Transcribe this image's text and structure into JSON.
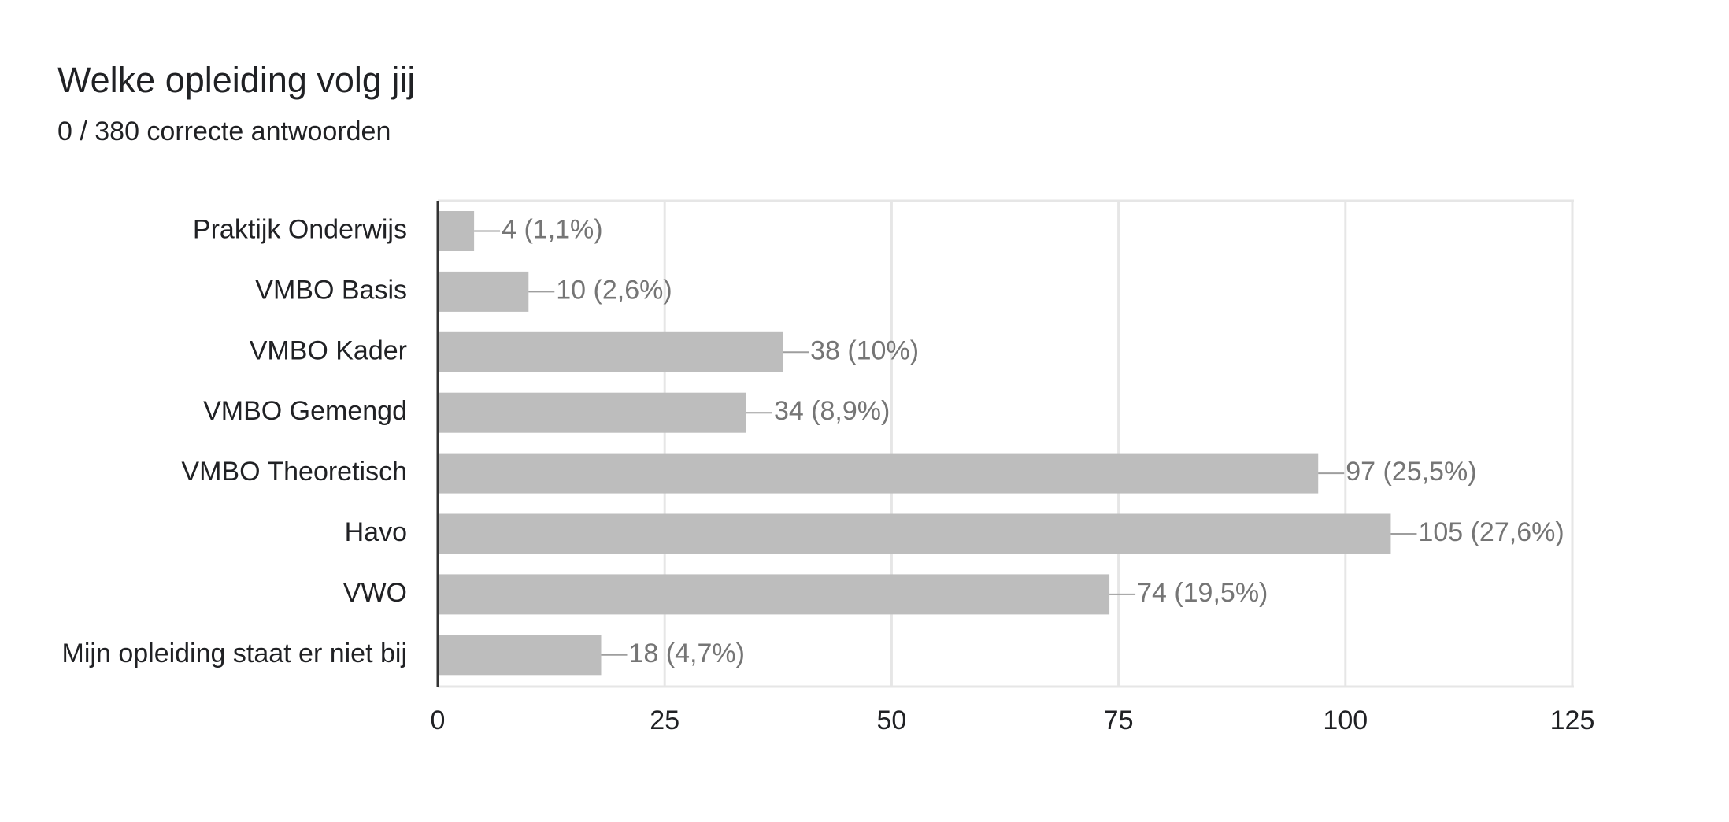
{
  "header": {
    "title": "Welke opleiding volg jij",
    "subtitle": "0 / 380 correcte antwoorden"
  },
  "colors": {
    "bar": "#bdbdbd",
    "grid": "#e6e6e6",
    "axis": "#333333",
    "label": "#202124",
    "data_label": "#757575"
  },
  "chart_data": {
    "type": "bar",
    "orientation": "horizontal",
    "title": "Welke opleiding volg jij",
    "subtitle": "0 / 380 correcte antwoorden",
    "categories": [
      "Praktijk Onderwijs",
      "VMBO Basis",
      "VMBO Kader",
      "VMBO Gemengd",
      "VMBO Theoretisch",
      "Havo",
      "VWO",
      "Mijn opleiding staat er niet bij"
    ],
    "values": [
      4,
      10,
      38,
      34,
      97,
      105,
      74,
      18
    ],
    "data_labels": [
      "4 (1,1%)",
      "10 (2,6%)",
      "38 (10%)",
      "34 (8,9%)",
      "97 (25,5%)",
      "105 (27,6%)",
      "74 (19,5%)",
      "18 (4,7%)"
    ],
    "xlim": [
      0,
      125
    ],
    "xticks": [
      0,
      25,
      50,
      75,
      100,
      125
    ],
    "xtick_labels": [
      "0",
      "25",
      "50",
      "75",
      "100",
      "125"
    ],
    "xlabel": "",
    "ylabel": "",
    "grid": true,
    "legend": "none"
  }
}
